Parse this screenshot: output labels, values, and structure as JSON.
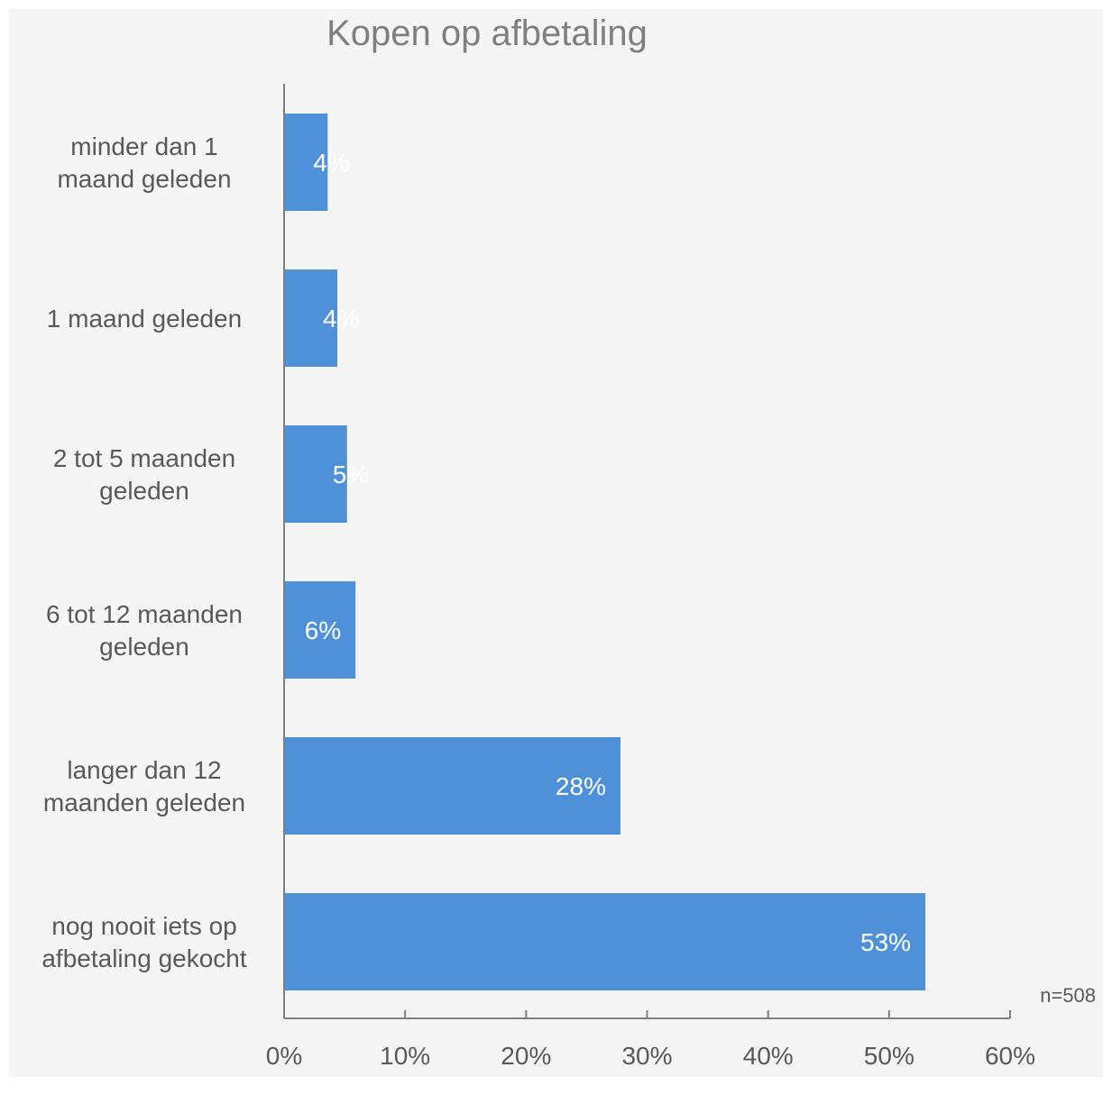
{
  "chart_data": {
    "type": "bar",
    "orientation": "horizontal",
    "title": "Kopen op afbetaling",
    "categories": [
      [
        "minder dan 1",
        "maand geleden"
      ],
      [
        "1 maand geleden"
      ],
      [
        "2 tot 5 maanden",
        "geleden"
      ],
      [
        "6 tot 12 maanden",
        "geleden"
      ],
      [
        "langer dan 12",
        "maanden geleden"
      ],
      [
        "nog nooit iets op",
        "afbetaling gekocht"
      ]
    ],
    "values": [
      3.6,
      4.4,
      5.2,
      5.9,
      27.8,
      53.0
    ],
    "data_labels": [
      "4%",
      "4%",
      "5%",
      "6%",
      "28%",
      "53%"
    ],
    "xlim": [
      0,
      60
    ],
    "xticks": [
      "0%",
      "10%",
      "20%",
      "30%",
      "40%",
      "50%",
      "60%"
    ],
    "note": "n=508",
    "bar_color": "#4f91d9",
    "grid": false
  }
}
